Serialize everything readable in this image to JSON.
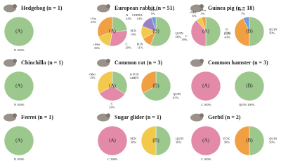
{
  "chart_data": [
    {
      "type": "pie",
      "title": "Hedgehog (n = 1)",
      "pies": [
        {
          "label": "(A)",
          "categories": [
            "N"
          ],
          "values": [
            100
          ],
          "value_labels": [
            "100%"
          ],
          "colors": [
            "#9dc88d"
          ]
        }
      ]
    },
    {
      "type": "pie",
      "title": "European rabbit (n = 51)",
      "pies": [
        {
          "label": "(A)",
          "categories": [
            "N",
            "C",
            "+Met",
            "+Tm"
          ],
          "values": [
            24,
            29,
            16,
            31
          ],
          "value_labels": [
            "24%",
            "29%",
            "16%",
            "31%"
          ],
          "colors": [
            "#9dc88d",
            "#e28aa8",
            "#f2c94c",
            "#f0a043"
          ]
        },
        {
          "label": "(B)",
          "categories": [
            "QUIN",
            "FOX",
            "PEN",
            "CEPHA",
            "NITF"
          ],
          "values": [
            56,
            11,
            14,
            14,
            5
          ],
          "value_labels": [
            "56%",
            "11%",
            "14%",
            "14%",
            "5%"
          ],
          "colors": [
            "#9dc88d",
            "#f0a043",
            "#f2c94c",
            "#9b7fc4",
            "#6f9fd8"
          ]
        }
      ]
    },
    {
      "type": "pie",
      "title": "Guinea pig (n = 18)",
      "pies": [
        {
          "label": "(A)",
          "categories": [
            "N",
            "C",
            "+Met",
            "+Tm"
          ],
          "values": [
            50,
            39,
            6,
            5
          ],
          "value_labels": [
            "50%",
            "39%",
            "6%",
            "5%"
          ],
          "colors": [
            "#9dc88d",
            "#e28aa8",
            "#f2c94c",
            "#f0a043"
          ]
        },
        {
          "label": "(B)",
          "categories": [
            "QUIN",
            "FOX",
            "NITF"
          ],
          "values": [
            50,
            43,
            7
          ],
          "value_labels": [
            "50%",
            "43%",
            "7%"
          ],
          "colors": [
            "#9dc88d",
            "#f0a043",
            "#6f9fd8"
          ]
        }
      ]
    },
    {
      "type": "pie",
      "title": "Chinchilla (n = 1)",
      "pies": [
        {
          "label": "(A)",
          "categories": [
            "N"
          ],
          "values": [
            100
          ],
          "value_labels": [
            "100%"
          ],
          "colors": [
            "#9dc88d"
          ]
        }
      ]
    },
    {
      "type": "pie",
      "title": "Common rat (n = 3)",
      "pies": [
        {
          "label": "(A)",
          "categories": [
            "N",
            "C",
            "+Met"
          ],
          "values": [
            34,
            33,
            33
          ],
          "value_labels": [
            "34%",
            "33%",
            "33%"
          ],
          "colors": [
            "#9dc88d",
            "#e28aa8",
            "#f2c94c"
          ]
        },
        {
          "label": "(B)",
          "categories": [
            "QUIN",
            "FOX"
          ],
          "values": [
            67,
            33
          ],
          "value_labels": [
            "67%",
            "33%"
          ],
          "colors": [
            "#9dc88d",
            "#f0a043"
          ]
        }
      ]
    },
    {
      "type": "pie",
      "title": "Common hamster (n = 3)",
      "pies": [
        {
          "label": "(A)",
          "categories": [
            "C"
          ],
          "values": [
            100
          ],
          "value_labels": [
            "100%"
          ],
          "colors": [
            "#e28aa8"
          ]
        },
        {
          "label": "(B)",
          "categories": [
            "QUIN"
          ],
          "values": [
            100
          ],
          "value_labels": [
            "100%"
          ],
          "colors": [
            "#9dc88d"
          ]
        }
      ]
    },
    {
      "type": "pie",
      "title": "Ferret (n = 1)",
      "pies": [
        {
          "label": "(A)",
          "categories": [
            "N"
          ],
          "values": [
            100
          ],
          "value_labels": [
            "100%"
          ],
          "colors": [
            "#9dc88d"
          ]
        }
      ]
    },
    {
      "type": "pie",
      "title": "Sugar glider (n = 1)",
      "pies": [
        {
          "label": "(A)",
          "categories": [
            "C"
          ],
          "values": [
            100
          ],
          "value_labels": [
            "100%"
          ],
          "colors": [
            "#e28aa8"
          ]
        },
        {
          "label": "(B)",
          "categories": [
            "QUIN",
            "PEN"
          ],
          "values": [
            50,
            50
          ],
          "value_labels": [
            "50%",
            "50%"
          ],
          "colors": [
            "#9dc88d",
            "#f2c94c"
          ]
        }
      ]
    },
    {
      "type": "pie",
      "title": "Gerbil (n = 2)",
      "pies": [
        {
          "label": "(A)",
          "categories": [
            "C"
          ],
          "values": [
            100
          ],
          "value_labels": [
            "100%"
          ],
          "colors": [
            "#e28aa8"
          ]
        },
        {
          "label": "(B)",
          "categories": [
            "QUIN",
            "FOX"
          ],
          "values": [
            50,
            50
          ],
          "value_labels": [
            "50%",
            "50%"
          ],
          "colors": [
            "#9dc88d",
            "#f0a043"
          ]
        }
      ]
    }
  ]
}
